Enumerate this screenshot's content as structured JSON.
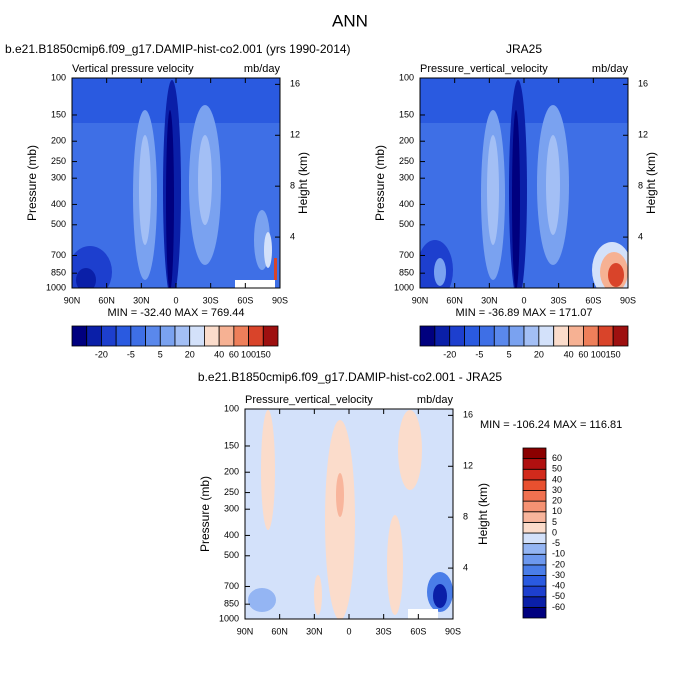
{
  "title": "ANN",
  "chart_data": [
    {
      "type": "contour",
      "title": "b.e21.B1850cmip6.f09_g17.DAMIP-hist-co2.001 (yrs 1990-2014)",
      "left_string": "Vertical pressure velocity",
      "right_string": "mb/day",
      "ylabel": "Pressure (mb)",
      "y2label": "Height (km)",
      "annotation": "MIN = -32.40  MAX = 769.44",
      "xlim": [
        90,
        -90
      ],
      "xticks": [
        {
          "value": 90,
          "label": "90N"
        },
        {
          "value": 60,
          "label": "60N"
        },
        {
          "value": 30,
          "label": "30N"
        },
        0,
        {
          "value": -30,
          "label": "30S"
        },
        {
          "value": -60,
          "label": "60S"
        },
        {
          "value": -90,
          "label": "90S"
        }
      ],
      "ylim": [
        1000,
        100
      ],
      "log_y": true,
      "yticks": [
        100,
        150,
        200,
        250,
        300,
        400,
        500,
        700,
        850,
        1000
      ],
      "y2lim": [
        0,
        16.5
      ],
      "y2ticks": [
        4,
        8,
        12,
        16
      ],
      "colorbar": {
        "orientation": "horizontal",
        "levels": [
          null,
          -20,
          null,
          -5,
          null,
          5,
          null,
          20,
          null,
          40,
          60,
          100,
          150
        ],
        "colors": [
          "#00007f",
          "#0a1fa8",
          "#1d3fce",
          "#2a5ae0",
          "#3e6fe6",
          "#5a88ec",
          "#7aa2f0",
          "#a3bff5",
          "#d3e1fa",
          "#fbdccb",
          "#f6b193",
          "#ee7f5a",
          "#d9442a",
          "#9e1010"
        ]
      }
    },
    {
      "type": "contour",
      "title": "JRA25",
      "left_string": "Pressure_vertical_velocity",
      "right_string": "mb/day",
      "ylabel": "Pressure (mb)",
      "y2label": "Height (km)",
      "annotation": "MIN = -36.89  MAX = 171.07",
      "xlim": [
        90,
        -90
      ],
      "xticks": [
        {
          "value": 90,
          "label": "90N"
        },
        {
          "value": 60,
          "label": "60N"
        },
        {
          "value": 30,
          "label": "30N"
        },
        0,
        {
          "value": -30,
          "label": "30S"
        },
        {
          "value": -60,
          "label": "60S"
        },
        {
          "value": -90,
          "label": "90S"
        }
      ],
      "ylim": [
        1000,
        100
      ],
      "log_y": true,
      "yticks": [
        100,
        150,
        200,
        250,
        300,
        400,
        500,
        700,
        850,
        1000
      ],
      "y2lim": [
        0,
        16.5
      ],
      "y2ticks": [
        4,
        8,
        12,
        16
      ],
      "colorbar": {
        "orientation": "horizontal",
        "levels": [
          null,
          -20,
          null,
          -5,
          null,
          5,
          null,
          20,
          null,
          40,
          60,
          100,
          150
        ],
        "colors": [
          "#00007f",
          "#0a1fa8",
          "#1d3fce",
          "#2a5ae0",
          "#3e6fe6",
          "#5a88ec",
          "#7aa2f0",
          "#a3bff5",
          "#d3e1fa",
          "#fbdccb",
          "#f6b193",
          "#ee7f5a",
          "#d9442a",
          "#9e1010"
        ]
      }
    },
    {
      "type": "contour",
      "title": "b.e21.B1850cmip6.f09_g17.DAMIP-hist-co2.001 - JRA25",
      "left_string": "Pressure_vertical_velocity",
      "right_string": "mb/day",
      "ylabel": "Pressure (mb)",
      "y2label": "Height (km)",
      "annotation": "MIN = -106.24  MAX = 116.81",
      "xlim": [
        90,
        -90
      ],
      "xticks": [
        {
          "value": 90,
          "label": "90N"
        },
        {
          "value": 60,
          "label": "60N"
        },
        {
          "value": 30,
          "label": "30N"
        },
        0,
        {
          "value": -30,
          "label": "30S"
        },
        {
          "value": -60,
          "label": "60S"
        },
        {
          "value": -90,
          "label": "90S"
        }
      ],
      "ylim": [
        1000,
        100
      ],
      "log_y": true,
      "yticks": [
        100,
        150,
        200,
        250,
        300,
        400,
        500,
        700,
        850,
        1000
      ],
      "y2lim": [
        0,
        16.5
      ],
      "y2ticks": [
        4,
        8,
        12,
        16
      ],
      "colorbar": {
        "orientation": "vertical",
        "levels": [
          -60,
          -50,
          -40,
          -30,
          -20,
          -10,
          -5,
          0,
          5,
          10,
          20,
          30,
          40,
          50,
          60
        ],
        "colors": [
          "#00007f",
          "#0a1fa8",
          "#1d3fce",
          "#2a5ae0",
          "#4a7de8",
          "#6d98ee",
          "#94b5f3",
          "#d3e1fa",
          "#fbdccb",
          "#f8b59c",
          "#f59273",
          "#f07150",
          "#e8502f",
          "#d22a1c",
          "#b01010",
          "#8b0000"
        ]
      }
    }
  ]
}
